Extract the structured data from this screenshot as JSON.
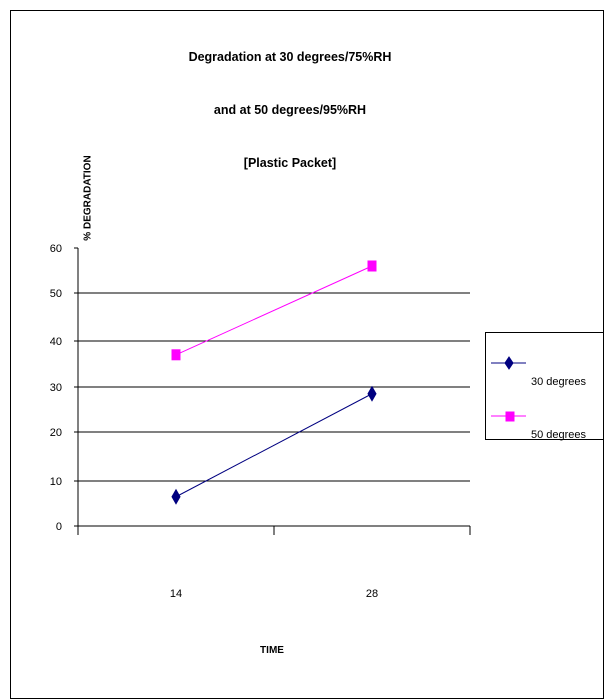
{
  "chart_data": {
    "type": "line",
    "title_lines": [
      "Degradation at 30 degrees/75%RH",
      "and at 50 degrees/95%RH",
      "[Plastic Packet]"
    ],
    "xlabel": "TIME",
    "ylabel": "% DEGRADATION",
    "categories": [
      "14",
      "28"
    ],
    "y_ticks": [
      0,
      10,
      20,
      30,
      40,
      50,
      60
    ],
    "ylim": [
      0,
      60
    ],
    "grid": true,
    "legend_position": "right",
    "series": [
      {
        "name": "30 degrees",
        "values": [
          6.5,
          28.5
        ],
        "color": "#000080",
        "marker": "diamond"
      },
      {
        "name": "50 degrees",
        "values": [
          37,
          56
        ],
        "color": "#ff00ff",
        "marker": "square"
      }
    ]
  }
}
